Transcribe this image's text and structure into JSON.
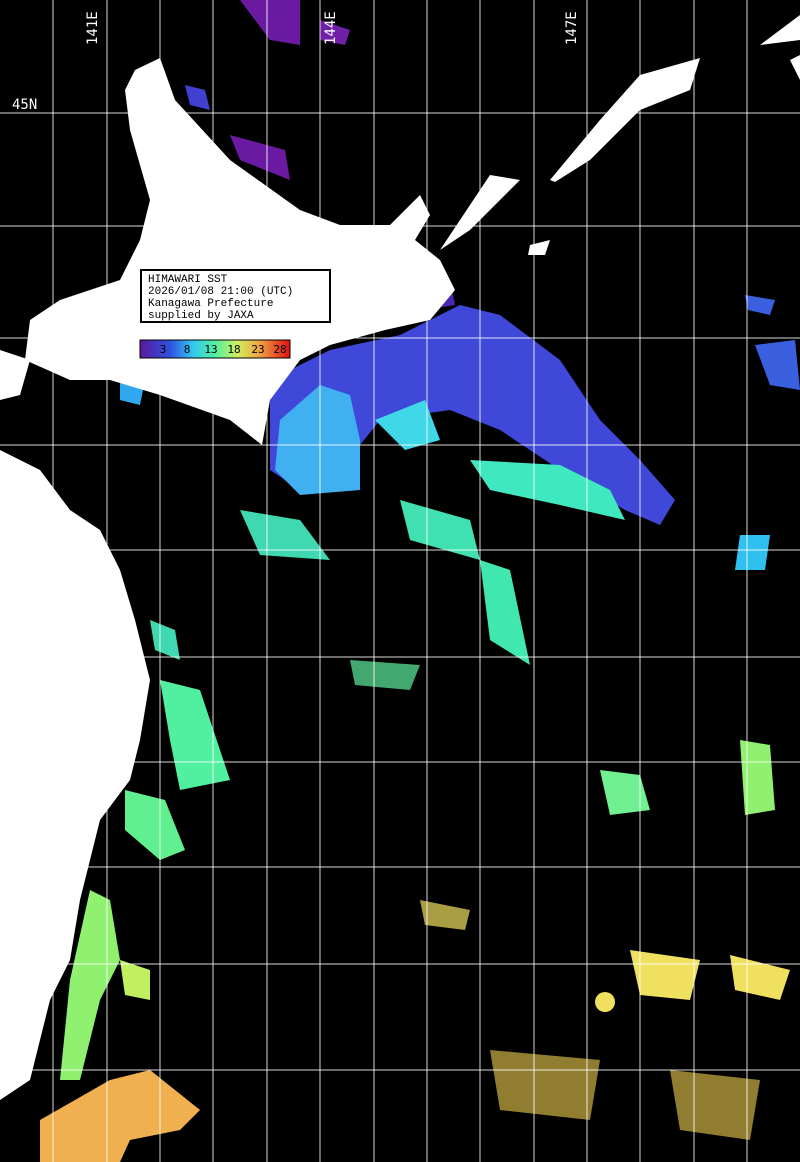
{
  "map": {
    "lon_labels": [
      "141E",
      "144E",
      "147E"
    ],
    "lat_labels": [
      "45N"
    ],
    "info_box": [
      "HIMAWARI SST",
      "2026/01/08 21:00 (UTC)",
      "Kanagawa Prefecture",
      "supplied by JAXA"
    ],
    "colorbar_labels": [
      "3",
      "8",
      "13",
      "18",
      "23",
      "28"
    ]
  }
}
